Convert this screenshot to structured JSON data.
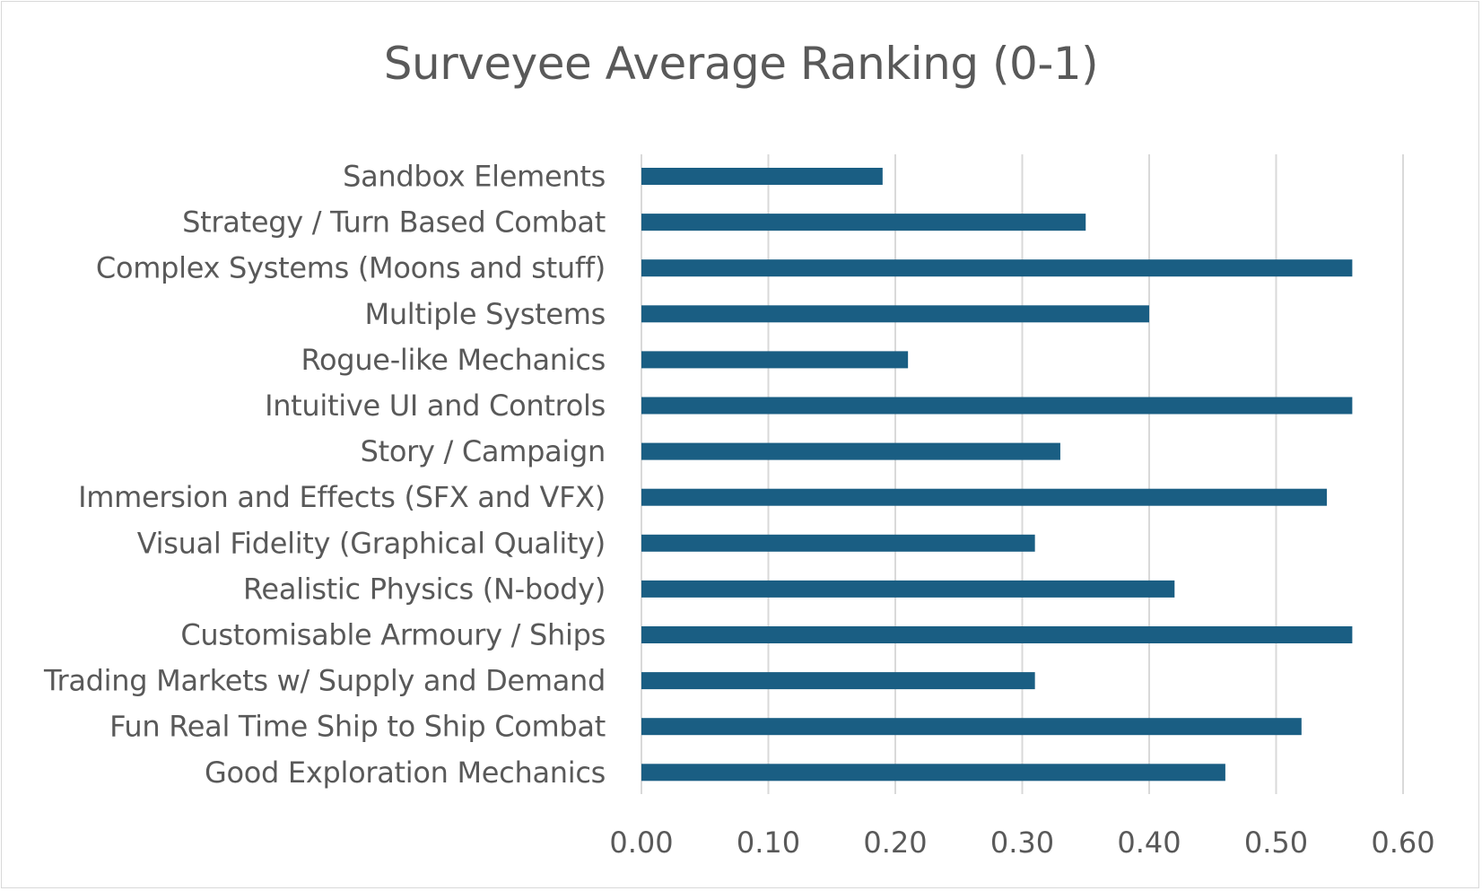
{
  "chart_data": {
    "type": "bar",
    "orientation": "horizontal",
    "title": "Surveyee Average Ranking (0-1)",
    "xlabel": "",
    "ylabel": "",
    "xlim": [
      0,
      0.6
    ],
    "xticks": [
      "0.00",
      "0.10",
      "0.20",
      "0.30",
      "0.40",
      "0.50",
      "0.60"
    ],
    "grid": "vertical",
    "legend": "none",
    "bar_color": "#1a5e83",
    "categories": [
      "Sandbox Elements",
      "Strategy / Turn Based Combat",
      "Complex Systems (Moons and stuff)",
      "Multiple Systems",
      "Rogue-like Mechanics",
      "Intuitive UI and Controls",
      "Story / Campaign",
      "Immersion and Effects (SFX and VFX)",
      "Visual Fidelity (Graphical Quality)",
      "Realistic Physics (N-body)",
      "Customisable Armoury / Ships",
      "Trading Markets w/ Supply and Demand",
      "Fun Real Time Ship to Ship Combat",
      "Good Exploration Mechanics"
    ],
    "values": [
      0.19,
      0.35,
      0.56,
      0.4,
      0.21,
      0.56,
      0.33,
      0.54,
      0.31,
      0.42,
      0.56,
      0.31,
      0.52,
      0.46
    ]
  }
}
